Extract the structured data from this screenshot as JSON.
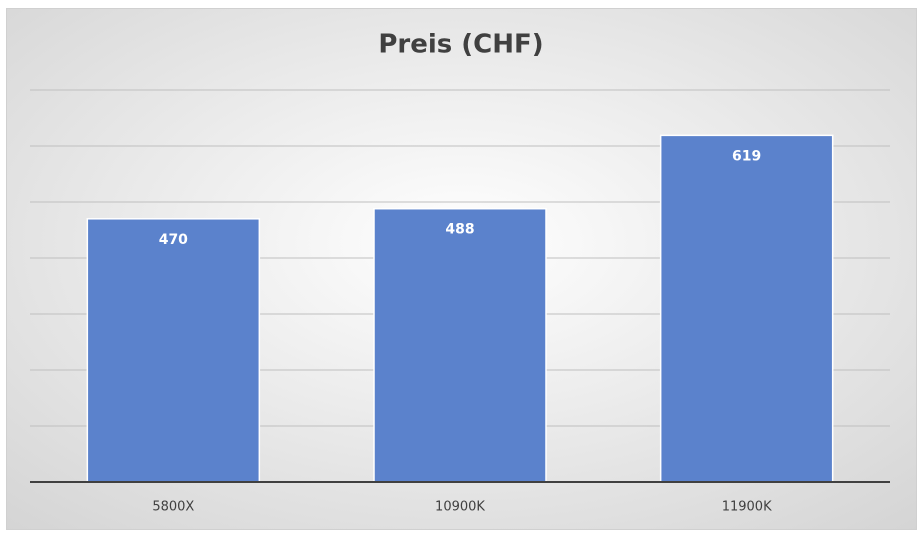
{
  "chart_data": {
    "type": "bar",
    "title": "Preis (CHF)",
    "categories": [
      "5800X",
      "10900K",
      "11900K"
    ],
    "values": [
      470,
      488,
      619
    ],
    "color": "#5b82cc",
    "ylim": [
      0,
      700
    ],
    "yticks": [
      0,
      100,
      200,
      300,
      400,
      500,
      600,
      700
    ],
    "grid": true,
    "tick_labels": false,
    "data_labels": true
  }
}
